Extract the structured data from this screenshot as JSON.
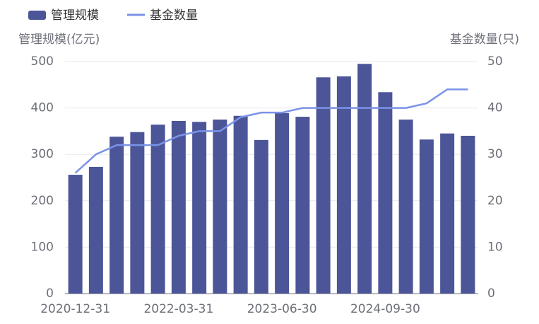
{
  "chart_data": {
    "type": "bar",
    "categories": [
      "2020-12-31",
      null,
      null,
      null,
      null,
      "2022-03-31",
      null,
      null,
      null,
      null,
      "2023-06-30",
      null,
      null,
      null,
      null,
      "2024-09-30",
      null,
      null,
      null,
      null
    ],
    "series": [
      {
        "name": "管理规模",
        "type": "bar",
        "color": "#4b5597",
        "values": [
          256,
          273,
          338,
          348,
          364,
          372,
          370,
          375,
          383,
          331,
          389,
          381,
          466,
          468,
          495,
          434,
          375,
          332,
          345,
          340
        ]
      },
      {
        "name": "基金数量",
        "type": "line",
        "axis": "y2",
        "color": "#7b93e8",
        "values": [
          26,
          30,
          32,
          32,
          32,
          34,
          35,
          35,
          38,
          39,
          39,
          40,
          40,
          40,
          40,
          40,
          40,
          41,
          44,
          44
        ]
      }
    ],
    "y_label": "管理规模(亿元)",
    "y2_label": "基金数量(只)",
    "ylim": [
      0,
      500
    ],
    "yticks": [
      0,
      100,
      200,
      300,
      400,
      500
    ],
    "y2lim": [
      0,
      50
    ],
    "y2ticks": [
      0,
      10,
      20,
      30,
      40,
      50
    ],
    "grid": true
  }
}
